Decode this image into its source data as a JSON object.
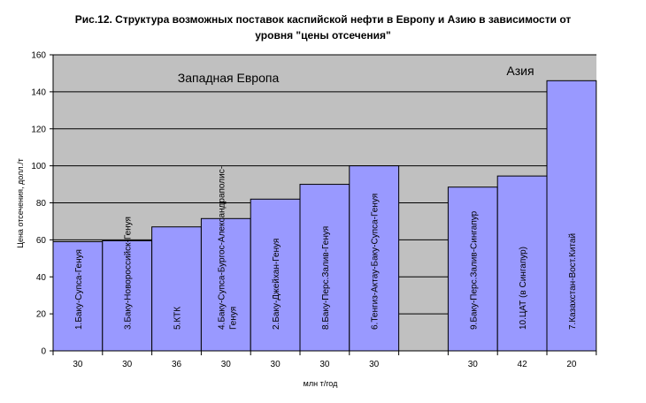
{
  "chart_data": {
    "type": "bar",
    "title_line1": "Рис.12. Структура возможных поставок каспийской нефти в Европу и Азию в зависимости от",
    "title_line2": "уровня \"цены отсечения\"",
    "xlabel": "млн т/год",
    "ylabel": "Цена отсечения, долл./т",
    "ylim": [
      0,
      160
    ],
    "yticks": [
      0,
      20,
      40,
      60,
      80,
      100,
      120,
      140,
      160
    ],
    "grid": true,
    "background": "#c0c0c0",
    "bar_color": "#9999ff",
    "regions": [
      {
        "label": "Западная Европа"
      },
      {
        "label": "Азия"
      }
    ],
    "bars": [
      {
        "label": "1.Баку-Супса-Генуя",
        "value": 59,
        "width": 30,
        "region": 0
      },
      {
        "label": "3.Баку-Новороссийск-Генуя",
        "value": 59.5,
        "width": 30,
        "region": 0
      },
      {
        "label": "5.КТК",
        "value": 67,
        "width": 36,
        "region": 0
      },
      {
        "label": "4.Баку-Супса-Бургос-Александраполис-Генуя",
        "value": 71.5,
        "width": 30,
        "region": 0
      },
      {
        "label": "2.Баку-Джейхан-Генуя",
        "value": 82,
        "width": 30,
        "region": 0
      },
      {
        "label": "8.Баку-Перс.Залив-Генуя",
        "value": 90,
        "width": 30,
        "region": 0
      },
      {
        "label": "6.Тенгиз-Актау-Баку-Супса-Генуя",
        "value": 100,
        "width": 30,
        "region": 0
      },
      {
        "label": "9.Баку-Перс.Залив-Сингапур",
        "value": 88.5,
        "width": 30,
        "region": 1
      },
      {
        "label": "10.ЦАТ (в Сингапур)",
        "value": 94.5,
        "width": 42,
        "region": 1
      },
      {
        "label": "7.Казахстан-Вост.Китай",
        "value": 146,
        "width": 20,
        "region": 1
      }
    ]
  }
}
